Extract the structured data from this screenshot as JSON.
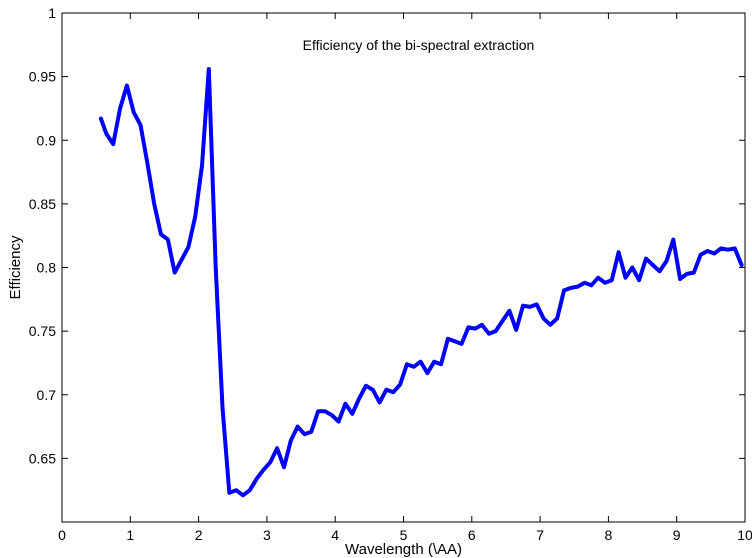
{
  "chart_data": {
    "type": "line",
    "title": "Efficiency of the bi-spectral extraction",
    "xlabel": "Wavelength (\\AA)",
    "ylabel": "Efficiency",
    "xlim": [
      0,
      10
    ],
    "ylim": [
      0.6,
      1.0
    ],
    "xticks": [
      "0",
      "1",
      "2",
      "3",
      "4",
      "5",
      "6",
      "7",
      "8",
      "9",
      "10"
    ],
    "yticks": [
      "0.65",
      "0.7",
      "0.75",
      "0.8",
      "0.85",
      "0.9",
      "0.95",
      "1"
    ],
    "grid": false,
    "line_color": "#0000ff",
    "series": [
      {
        "x": [
          0.57,
          0.65,
          0.75,
          0.85,
          0.95,
          1.05,
          1.15,
          1.25,
          1.35,
          1.45,
          1.55,
          1.65,
          1.75,
          1.85,
          1.95,
          2.05,
          2.15,
          2.25,
          2.35,
          2.45,
          2.55,
          2.65,
          2.75,
          2.85,
          2.95,
          3.05,
          3.15,
          3.25,
          3.35,
          3.45,
          3.55,
          3.65,
          3.75,
          3.85,
          3.95,
          4.05,
          4.15,
          4.25,
          4.35,
          4.45,
          4.55,
          4.65,
          4.75,
          4.85,
          4.95,
          5.05,
          5.15,
          5.25,
          5.35,
          5.45,
          5.55,
          5.65,
          5.75,
          5.85,
          5.95,
          6.05,
          6.15,
          6.25,
          6.35,
          6.45,
          6.55,
          6.65,
          6.75,
          6.85,
          6.95,
          7.05,
          7.15,
          7.25,
          7.35,
          7.45,
          7.55,
          7.65,
          7.75,
          7.85,
          7.95,
          8.05,
          8.15,
          8.25,
          8.35,
          8.45,
          8.55,
          8.65,
          8.75,
          8.85,
          8.95,
          9.05,
          9.15,
          9.25,
          9.35,
          9.45,
          9.55,
          9.65,
          9.75,
          9.85,
          9.95
        ],
        "y": [
          0.917,
          0.905,
          0.897,
          0.925,
          0.943,
          0.922,
          0.912,
          0.882,
          0.85,
          0.826,
          0.822,
          0.796,
          0.806,
          0.816,
          0.84,
          0.88,
          0.956,
          0.8,
          0.69,
          0.623,
          0.625,
          0.621,
          0.625,
          0.634,
          0.641,
          0.647,
          0.658,
          0.643,
          0.664,
          0.675,
          0.669,
          0.671,
          0.687,
          0.687,
          0.684,
          0.679,
          0.693,
          0.685,
          0.697,
          0.707,
          0.704,
          0.694,
          0.704,
          0.702,
          0.708,
          0.724,
          0.722,
          0.726,
          0.717,
          0.726,
          0.724,
          0.744,
          0.742,
          0.74,
          0.753,
          0.752,
          0.755,
          0.748,
          0.75,
          0.758,
          0.766,
          0.751,
          0.77,
          0.769,
          0.771,
          0.76,
          0.755,
          0.76,
          0.782,
          0.784,
          0.785,
          0.788,
          0.786,
          0.792,
          0.788,
          0.79,
          0.812,
          0.792,
          0.8,
          0.79,
          0.807,
          0.802,
          0.797,
          0.805,
          0.822,
          0.791,
          0.795,
          0.796,
          0.81,
          0.813,
          0.811,
          0.815,
          0.814,
          0.815,
          0.802
        ]
      }
    ]
  }
}
